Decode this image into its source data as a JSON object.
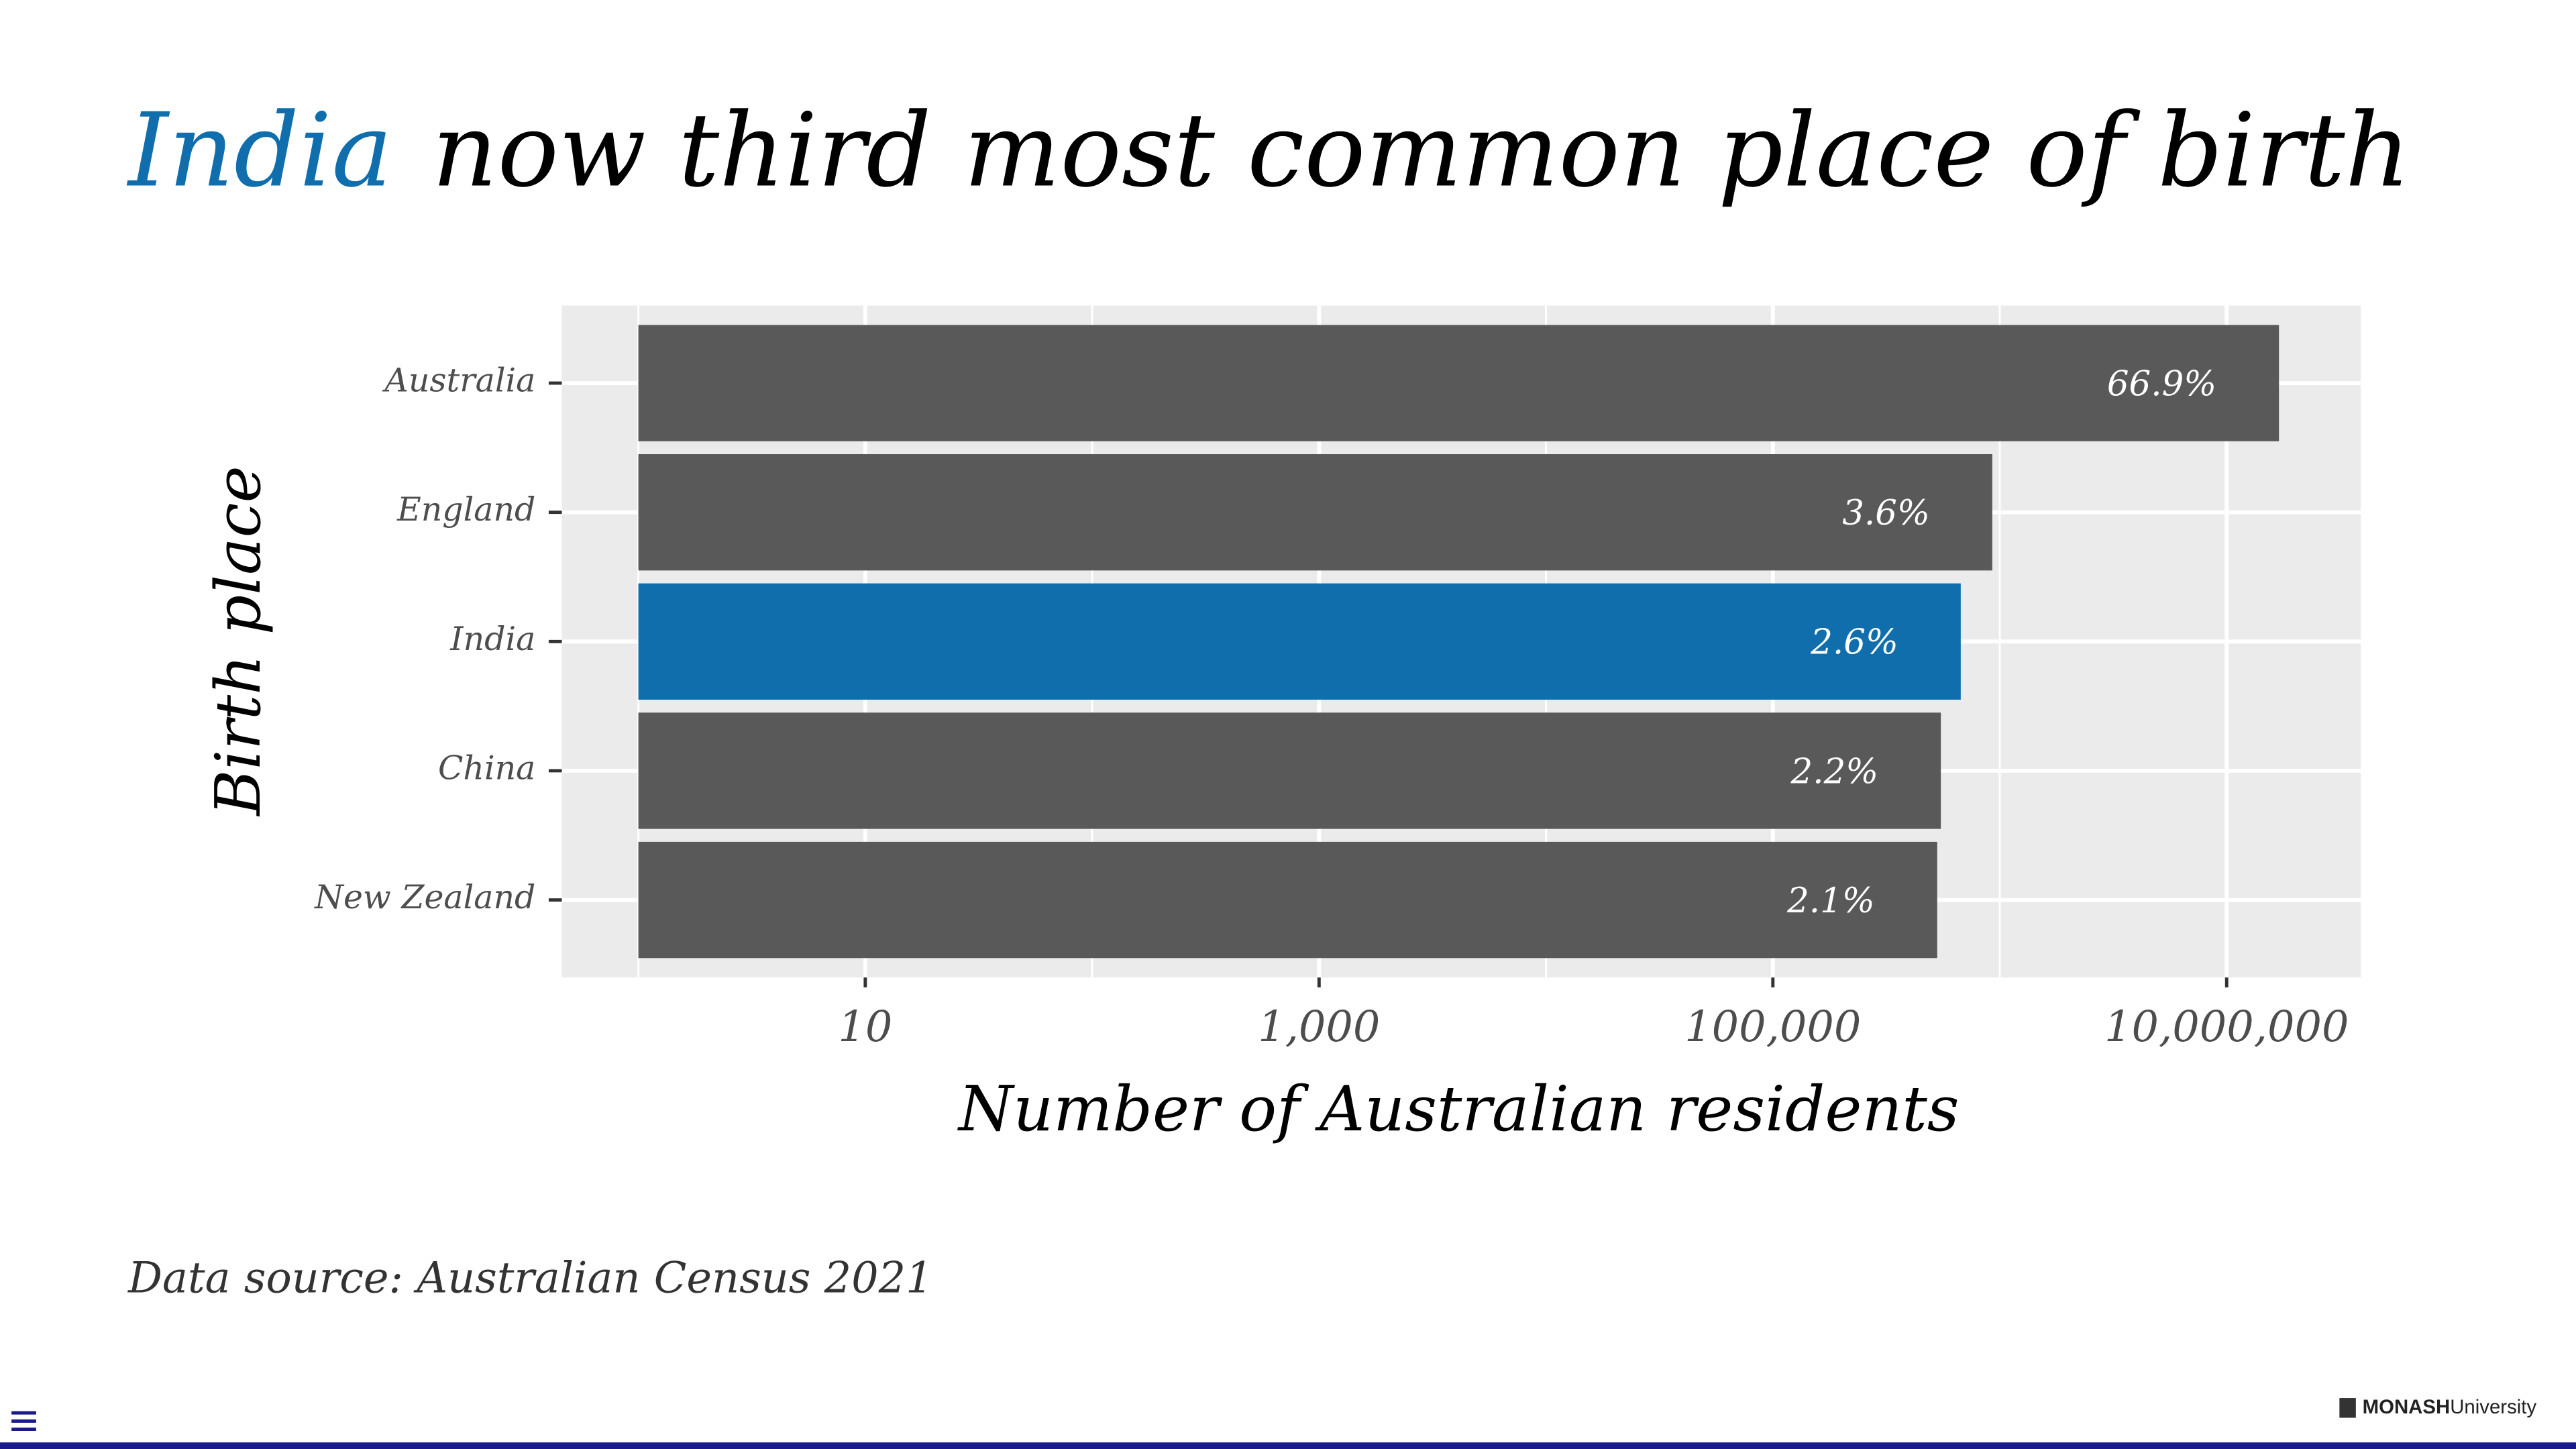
{
  "chart_data": {
    "type": "bar",
    "orientation": "horizontal",
    "title_highlight": "India",
    "title_rest": "now third most common place of birth",
    "xlabel": "Number of Australian residents",
    "ylabel": "Birth place",
    "categories": [
      "Australia",
      "England",
      "India",
      "China",
      "New Zealand"
    ],
    "values": [
      17000000,
      927000,
      673000,
      550000,
      530000
    ],
    "bar_labels": [
      "66.9%",
      "3.6%",
      "2.6%",
      "2.2%",
      "2.1%"
    ],
    "colors": [
      "#595959",
      "#595959",
      "#106eac",
      "#595959",
      "#595959"
    ],
    "highlight_color": "#106eac",
    "xscale": "log",
    "xlim": [
      0.46,
      39000000
    ],
    "xticks": [
      {
        "value": 10,
        "label": "10"
      },
      {
        "value": 1000,
        "label": "1,000"
      },
      {
        "value": 100000,
        "label": "100,000"
      },
      {
        "value": 10000000,
        "label": "10,000,000"
      }
    ],
    "x_minor_ticks": [
      1,
      100,
      10000,
      1000000
    ],
    "grid": true
  },
  "source": "Data source: Australian Census 2021",
  "footer": {
    "brand": "MONASH",
    "brand_suffix": "University"
  }
}
